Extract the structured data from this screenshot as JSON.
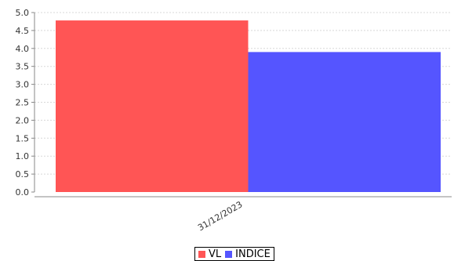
{
  "chart_data": {
    "type": "bar",
    "categories": [
      "31/12/2023"
    ],
    "series": [
      {
        "name": "VL",
        "values": [
          4.78
        ],
        "color": "#ff5555"
      },
      {
        "name": "INDICE",
        "values": [
          3.9
        ],
        "color": "#5555ff"
      }
    ],
    "ylim": [
      0,
      5
    ],
    "yticks": [
      "0.0",
      "0.5",
      "1.0",
      "1.5",
      "2.0",
      "2.5",
      "3.0",
      "3.5",
      "4.0",
      "4.5",
      "5.0"
    ],
    "grid": true,
    "legend_position": "bottom"
  }
}
